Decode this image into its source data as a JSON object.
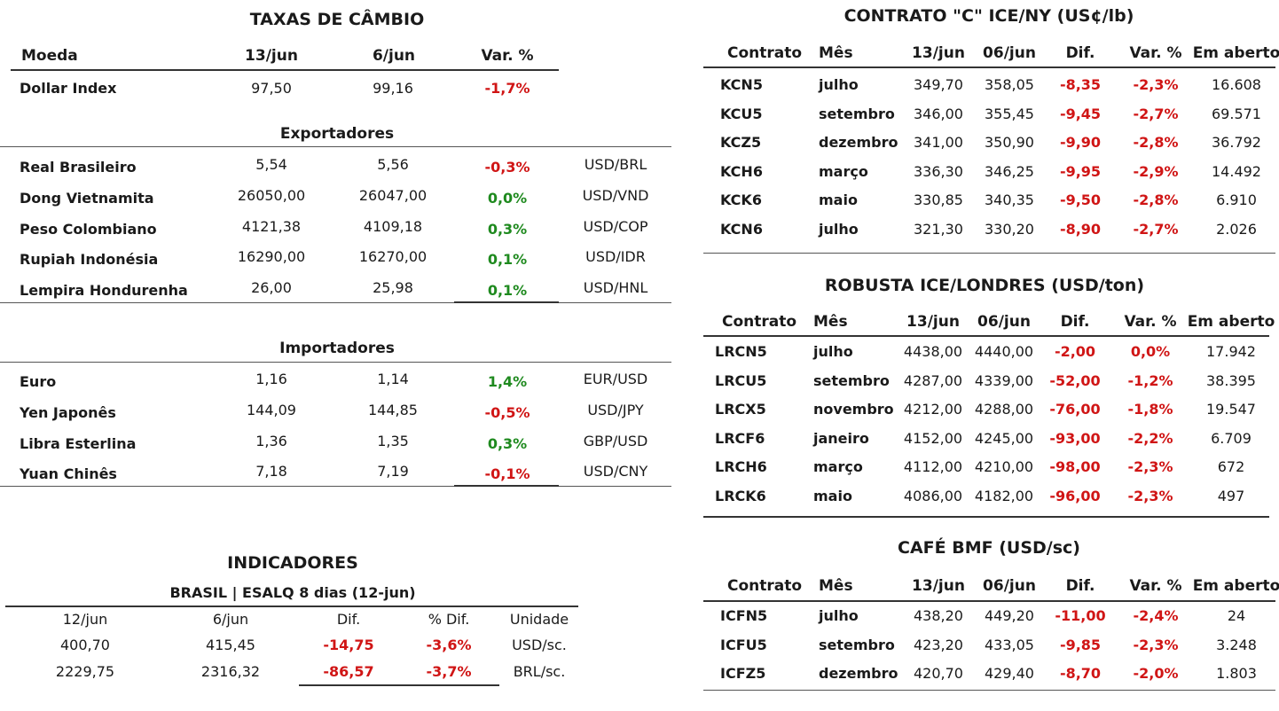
{
  "cambio": {
    "title": "TAXAS DE CÂMBIO",
    "headers": [
      "Moeda",
      "13/jun",
      "6/jun",
      "Var. %"
    ],
    "dollar_index": {
      "name": "Dollar Index",
      "a": "97,50",
      "b": "99,16",
      "var": "-1,7%",
      "sign": "neg"
    },
    "exportadores_title": "Exportadores",
    "exportadores": [
      {
        "name": "Real Brasileiro",
        "a": "5,54",
        "b": "5,56",
        "var": "-0,3%",
        "sign": "neg",
        "pair": "USD/BRL"
      },
      {
        "name": "Dong Vietnamita",
        "a": "26050,00",
        "b": "26047,00",
        "var": "0,0%",
        "sign": "pos",
        "pair": "USD/VND"
      },
      {
        "name": "Peso Colombiano",
        "a": "4121,38",
        "b": "4109,18",
        "var": "0,3%",
        "sign": "pos",
        "pair": "USD/COP"
      },
      {
        "name": "Rupiah Indonésia",
        "a": "16290,00",
        "b": "16270,00",
        "var": "0,1%",
        "sign": "pos",
        "pair": "USD/IDR"
      },
      {
        "name": "Lempira Hondurenha",
        "a": "26,00",
        "b": "25,98",
        "var": "0,1%",
        "sign": "pos",
        "pair": "USD/HNL"
      }
    ],
    "importadores_title": "Importadores",
    "importadores": [
      {
        "name": "Euro",
        "a": "1,16",
        "b": "1,14",
        "var": "1,4%",
        "sign": "pos",
        "pair": "EUR/USD"
      },
      {
        "name": "Yen Japonês",
        "a": "144,09",
        "b": "144,85",
        "var": "-0,5%",
        "sign": "neg",
        "pair": "USD/JPY"
      },
      {
        "name": "Libra Esterlina",
        "a": "1,36",
        "b": "1,35",
        "var": "0,3%",
        "sign": "pos",
        "pair": "GBP/USD"
      },
      {
        "name": "Yuan Chinês",
        "a": "7,18",
        "b": "7,19",
        "var": "-0,1%",
        "sign": "neg",
        "pair": "USD/CNY"
      }
    ]
  },
  "indicadores": {
    "title": "INDICADORES",
    "subtitle": "BRASIL | ESALQ 8 dias (12-jun)",
    "headers": [
      "12/jun",
      "6/jun",
      "Dif.",
      "% Dif.",
      "Unidade"
    ],
    "rows": [
      {
        "a": "400,70",
        "b": "415,45",
        "dif": "-14,75",
        "pct": "-3,6%",
        "unit": "USD/sc."
      },
      {
        "a": "2229,75",
        "b": "2316,32",
        "dif": "-86,57",
        "pct": "-3,7%",
        "unit": "BRL/sc."
      }
    ]
  },
  "contrato_c": {
    "title": "CONTRATO \"C\" ICE/NY (US¢/lb)",
    "headers": [
      "Contrato",
      "Mês",
      "13/jun",
      "06/jun",
      "Dif.",
      "Var. %",
      "Em aberto"
    ],
    "rows": [
      {
        "code": "KCN5",
        "month": "julho",
        "a": "349,70",
        "b": "358,05",
        "dif": "-8,35",
        "var": "-2,3%",
        "open": "16.608"
      },
      {
        "code": "KCU5",
        "month": "setembro",
        "a": "346,00",
        "b": "355,45",
        "dif": "-9,45",
        "var": "-2,7%",
        "open": "69.571"
      },
      {
        "code": "KCZ5",
        "month": "dezembro",
        "a": "341,00",
        "b": "350,90",
        "dif": "-9,90",
        "var": "-2,8%",
        "open": "36.792"
      },
      {
        "code": "KCH6",
        "month": "março",
        "a": "336,30",
        "b": "346,25",
        "dif": "-9,95",
        "var": "-2,9%",
        "open": "14.492"
      },
      {
        "code": "KCK6",
        "month": "maio",
        "a": "330,85",
        "b": "340,35",
        "dif": "-9,50",
        "var": "-2,8%",
        "open": "6.910"
      },
      {
        "code": "KCN6",
        "month": "julho",
        "a": "321,30",
        "b": "330,20",
        "dif": "-8,90",
        "var": "-2,7%",
        "open": "2.026"
      }
    ]
  },
  "robusta": {
    "title": "ROBUSTA ICE/LONDRES (USD/ton)",
    "headers": [
      "Contrato",
      "Mês",
      "13/jun",
      "06/jun",
      "Dif.",
      "Var. %",
      "Em aberto"
    ],
    "rows": [
      {
        "code": "LRCN5",
        "month": "julho",
        "a": "4438,00",
        "b": "4440,00",
        "dif": "-2,00",
        "var": "0,0%",
        "open": "17.942"
      },
      {
        "code": "LRCU5",
        "month": "setembro",
        "a": "4287,00",
        "b": "4339,00",
        "dif": "-52,00",
        "var": "-1,2%",
        "open": "38.395"
      },
      {
        "code": "LRCX5",
        "month": "novembro",
        "a": "4212,00",
        "b": "4288,00",
        "dif": "-76,00",
        "var": "-1,8%",
        "open": "19.547"
      },
      {
        "code": "LRCF6",
        "month": "janeiro",
        "a": "4152,00",
        "b": "4245,00",
        "dif": "-93,00",
        "var": "-2,2%",
        "open": "6.709"
      },
      {
        "code": "LRCH6",
        "month": "março",
        "a": "4112,00",
        "b": "4210,00",
        "dif": "-98,00",
        "var": "-2,3%",
        "open": "672"
      },
      {
        "code": "LRCK6",
        "month": "maio",
        "a": "4086,00",
        "b": "4182,00",
        "dif": "-96,00",
        "var": "-2,3%",
        "open": "497"
      }
    ]
  },
  "bmf": {
    "title": "CAFÉ BMF (USD/sc)",
    "headers": [
      "Contrato",
      "Mês",
      "13/jun",
      "06/jun",
      "Dif.",
      "Var. %",
      "Em aberto"
    ],
    "rows": [
      {
        "code": "ICFN5",
        "month": "julho",
        "a": "438,20",
        "b": "449,20",
        "dif": "-11,00",
        "var": "-2,4%",
        "open": "24"
      },
      {
        "code": "ICFU5",
        "month": "setembro",
        "a": "423,20",
        "b": "433,05",
        "dif": "-9,85",
        "var": "-2,3%",
        "open": "3.248"
      },
      {
        "code": "ICFZ5",
        "month": "dezembro",
        "a": "420,70",
        "b": "429,40",
        "dif": "-8,70",
        "var": "-2,0%",
        "open": "1.803"
      }
    ]
  }
}
